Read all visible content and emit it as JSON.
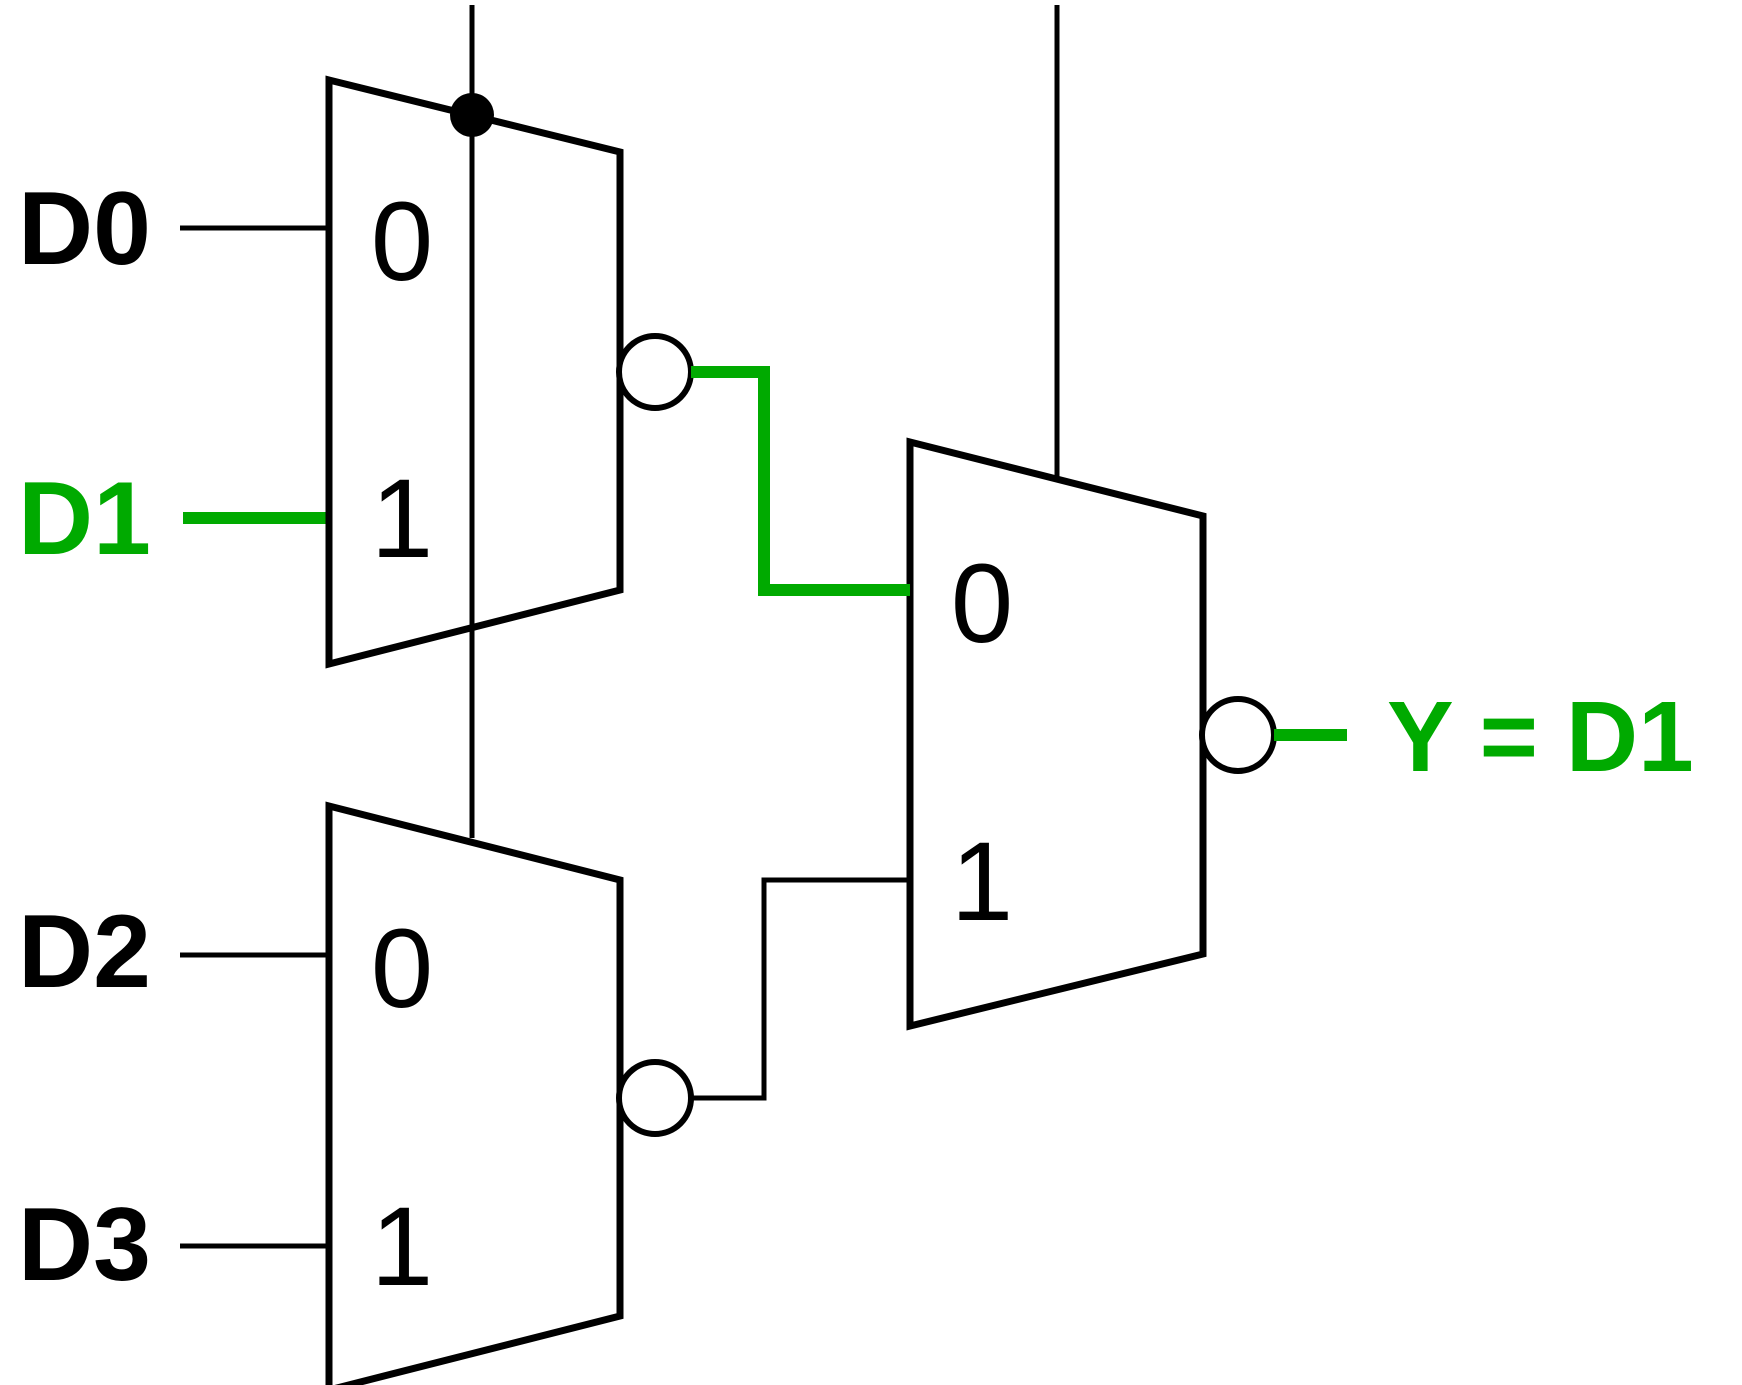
{
  "colors": {
    "wire": "#000000",
    "highlight": "#00aa00",
    "background": "#ffffff"
  },
  "inputs": [
    {
      "label": "D0",
      "active": false
    },
    {
      "label": "D1",
      "active": true
    },
    {
      "label": "D2",
      "active": false
    },
    {
      "label": "D3",
      "active": false
    }
  ],
  "muxes": [
    {
      "name": "mux-top",
      "port0": "0",
      "port1": "1"
    },
    {
      "name": "mux-bottom",
      "port0": "0",
      "port1": "1"
    },
    {
      "name": "mux-final",
      "port0": "0",
      "port1": "1"
    }
  ],
  "output": {
    "label": "Y = D1"
  }
}
